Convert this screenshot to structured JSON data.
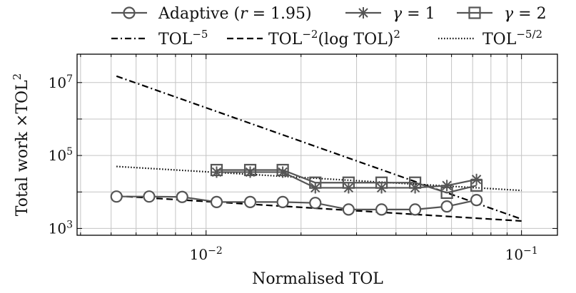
{
  "chart_data": {
    "type": "line",
    "xscale": "log",
    "yscale": "log",
    "xlim": [
      0.0039,
      0.13
    ],
    "ylim": [
      650,
      60000000
    ],
    "grid": true,
    "legend_position": "top",
    "xlabel": "Normalised TOL",
    "ylabel": "Total work ×TOL²",
    "x_ticks": [
      {
        "value": 0.01,
        "base": "10",
        "exp": "−2"
      },
      {
        "value": 0.1,
        "base": "10",
        "exp": "−1"
      }
    ],
    "y_ticks": [
      {
        "value": 1000,
        "base": "10",
        "exp": "3"
      },
      {
        "value": 100000,
        "base": "10",
        "exp": "5"
      },
      {
        "value": 10000000,
        "base": "10",
        "exp": "7"
      }
    ],
    "series": [
      {
        "name": "Adaptive (r = 1.95)",
        "color": "#555555",
        "marker": "circle",
        "line": "solid",
        "x": [
          0.0052,
          0.0066,
          0.0084,
          0.0108,
          0.0138,
          0.0175,
          0.0222,
          0.0283,
          0.036,
          0.046,
          0.058,
          0.072
        ],
        "y": [
          7500,
          7500,
          7300,
          5300,
          5300,
          5300,
          5000,
          3300,
          3300,
          3300,
          4000,
          6000
        ]
      },
      {
        "name": "γ = 1",
        "color": "#555555",
        "marker": "asterisk",
        "line": "solid",
        "x": [
          0.0108,
          0.0138,
          0.0175,
          0.0222,
          0.0283,
          0.036,
          0.046,
          0.058,
          0.072
        ],
        "y": [
          35000,
          35000,
          35000,
          13000,
          13000,
          13000,
          13000,
          15000,
          22000
        ]
      },
      {
        "name": "γ = 2",
        "color": "#555555",
        "marker": "square",
        "line": "solid",
        "x": [
          0.0108,
          0.0138,
          0.0175,
          0.0222,
          0.0283,
          0.036,
          0.046,
          0.058,
          0.072
        ],
        "y": [
          40000,
          40000,
          40000,
          18000,
          18000,
          18000,
          18000,
          9500,
          15000
        ]
      }
    ],
    "reference_lines": [
      {
        "name": "TOL",
        "exp": "−5",
        "style": "dashdot",
        "x": [
          0.0052,
          0.1
        ],
        "y": [
          15000000,
          1800
        ]
      },
      {
        "name": "TOL",
        "exp": "−2",
        "suffix_log": "log",
        "suffix_tol": "TOL",
        "suffix_exp": "2",
        "style": "dashed",
        "x": [
          0.0052,
          0.1
        ],
        "y": [
          7800,
          1600
        ]
      },
      {
        "name": "TOL",
        "exp": "−5/2",
        "style": "dotted",
        "x": [
          0.0052,
          0.1
        ],
        "y": [
          50000,
          11000
        ]
      }
    ]
  }
}
